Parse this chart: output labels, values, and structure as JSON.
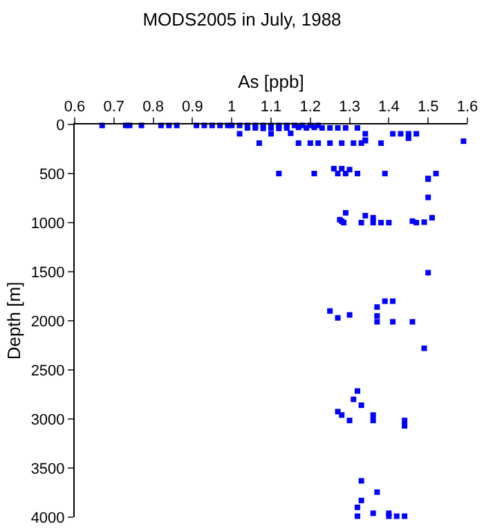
{
  "chart_data": {
    "type": "scatter",
    "title": "MODS2005 in July, 1988",
    "xlabel": "As [ppb]",
    "ylabel": "Depth [m]",
    "xlim": [
      0.6,
      1.6
    ],
    "xticks": [
      0.6,
      0.7,
      0.8,
      0.9,
      1,
      1.1,
      1.2,
      1.3,
      1.4,
      1.5,
      1.6
    ],
    "ylim": [
      4000,
      0
    ],
    "yticks": [
      0,
      500,
      1000,
      1500,
      2000,
      2500,
      3000,
      3500,
      4000
    ],
    "grid": false,
    "marker": "square",
    "series": [
      {
        "color": "#0000ff",
        "x": [
          0.67,
          0.73,
          0.74,
          0.77,
          0.82,
          0.84,
          0.86,
          0.91,
          0.93,
          0.95,
          0.97,
          0.99,
          1.0,
          1.02,
          1.04,
          1.06,
          1.08,
          1.1,
          1.12,
          1.14,
          1.16,
          1.18,
          1.2,
          1.22,
          1.04,
          1.06,
          1.08,
          1.1,
          1.12,
          1.14,
          1.17,
          1.19,
          1.21,
          1.23,
          1.25,
          1.27,
          1.29,
          1.32,
          1.02,
          1.1,
          1.15,
          1.34,
          1.41,
          1.43,
          1.45,
          1.47,
          1.45,
          1.07,
          1.17,
          1.2,
          1.22,
          1.25,
          1.28,
          1.31,
          1.33,
          1.38,
          1.59,
          1.34,
          1.34,
          1.26,
          1.28,
          1.3,
          1.12,
          1.21,
          1.27,
          1.29,
          1.32,
          1.39,
          1.52,
          1.5,
          1.5,
          1.5,
          1.29,
          1.34,
          1.36,
          1.51,
          1.275,
          1.285,
          1.28,
          1.33,
          1.36,
          1.38,
          1.4,
          1.46,
          1.47,
          1.49,
          1.5,
          1.39,
          1.41,
          1.37,
          1.25,
          1.27,
          1.3,
          1.37,
          1.37,
          1.41,
          1.46,
          1.49,
          1.32,
          1.31,
          1.33,
          1.27,
          1.28,
          1.3,
          1.36,
          1.36,
          1.44,
          1.44,
          1.33,
          1.37,
          1.33,
          1.32,
          1.36,
          1.4,
          1.32,
          1.4,
          1.42,
          1.44
        ],
        "values": [
          10,
          10,
          10,
          10,
          10,
          10,
          10,
          10,
          10,
          10,
          10,
          10,
          10,
          10,
          10,
          10,
          10,
          10,
          10,
          10,
          10,
          10,
          10,
          10,
          35,
          35,
          40,
          35,
          40,
          35,
          30,
          35,
          30,
          35,
          35,
          35,
          35,
          35,
          95,
          95,
          90,
          95,
          95,
          95,
          95,
          95,
          140,
          190,
          190,
          190,
          190,
          190,
          190,
          190,
          190,
          190,
          170,
          160,
          165,
          450,
          450,
          460,
          500,
          500,
          500,
          500,
          500,
          500,
          500,
          550,
          557,
          743,
          900,
          929,
          950,
          950,
          970,
          1000,
          985,
          1000,
          1000,
          1000,
          1000,
          985,
          1000,
          995,
          1510,
          1800,
          1800,
          1860,
          1900,
          1970,
          1940,
          1950,
          2010,
          2010,
          2010,
          2280,
          2715,
          2800,
          2860,
          2925,
          2960,
          3015,
          2960,
          3015,
          3015,
          3070,
          3630,
          3745,
          3830,
          3900,
          3960,
          3960,
          3990,
          3990,
          3990,
          3990
        ]
      }
    ]
  }
}
